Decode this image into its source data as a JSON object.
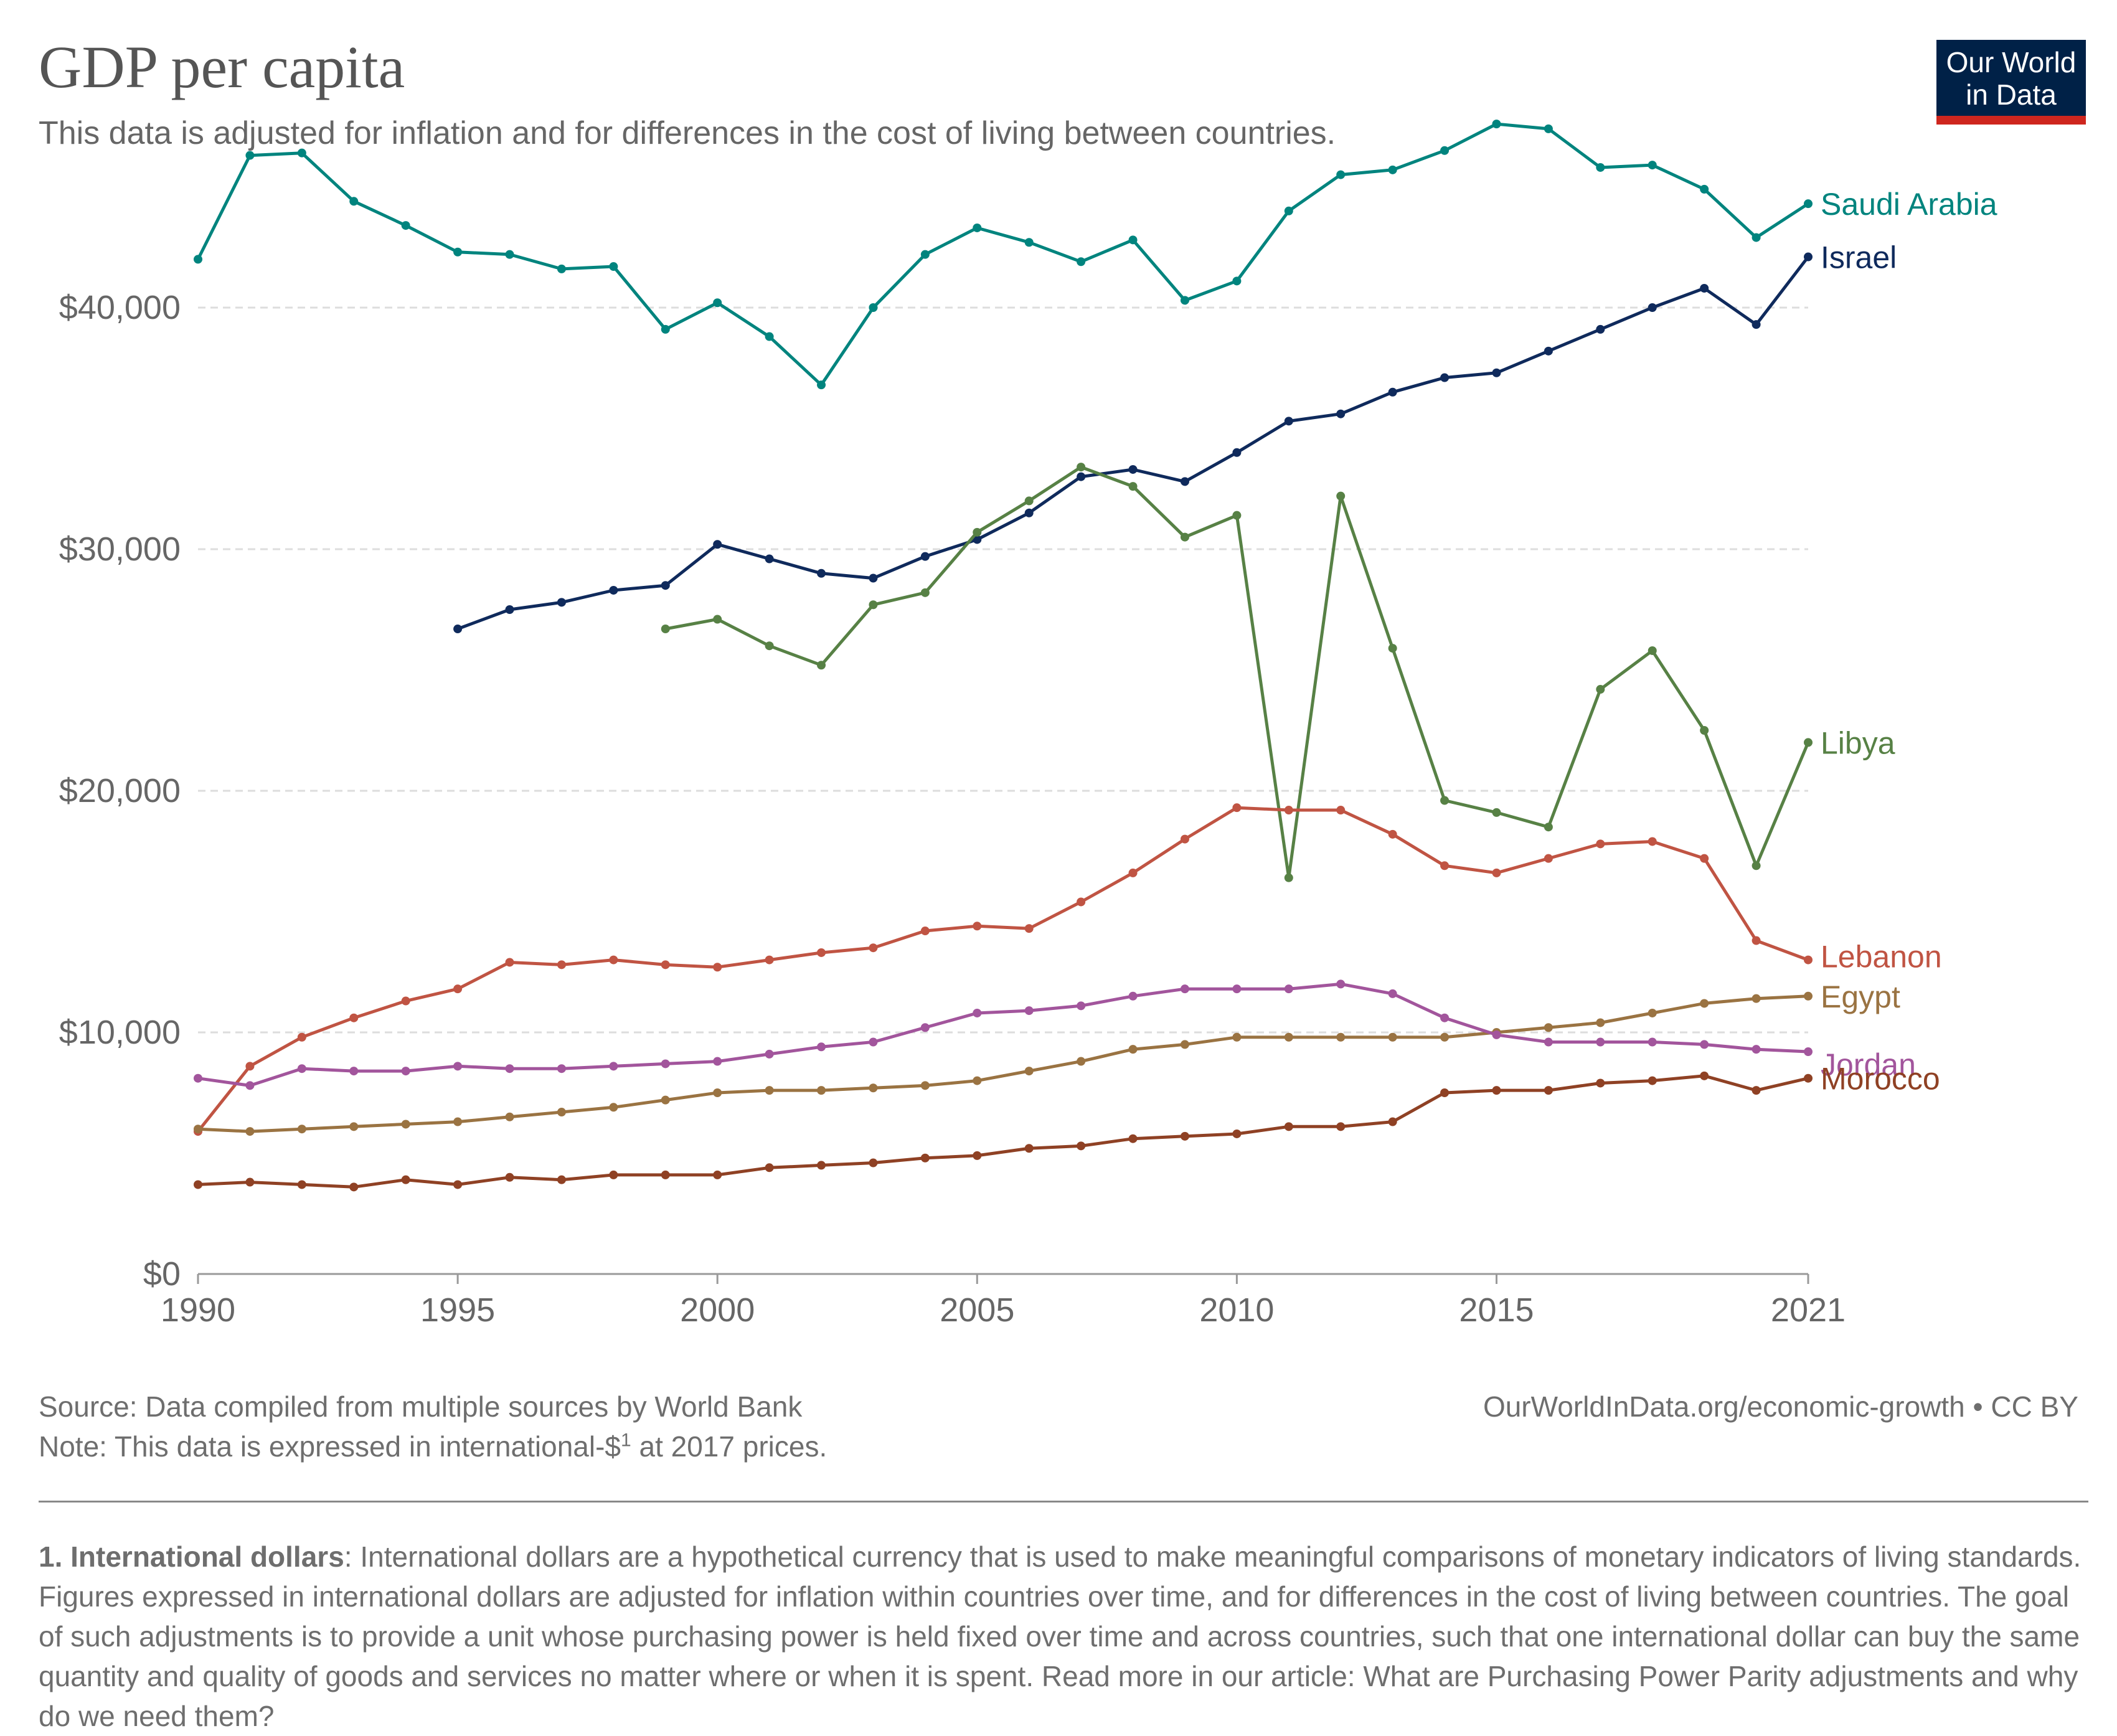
{
  "header": {
    "title": "GDP per capita",
    "subtitle": "This data is adjusted for inflation and for differences in the cost of living between countries.",
    "logo_line1": "Our World",
    "logo_line2": "in Data"
  },
  "footer": {
    "source": "Source: Data compiled from multiple sources by World Bank",
    "note_before": "Note: This data is expressed in international-$",
    "note_sup": "1",
    "note_after": " at 2017 prices.",
    "url": "OurWorldInData.org/economic-growth • CC BY",
    "footnote_bold": "1. International dollars",
    "footnote_text": ": International dollars are a hypothetical currency that is used to make meaningful comparisons of monetary indicators of living standards. Figures expressed in international dollars are adjusted for inflation within countries over time, and for differences in the cost of living between countries. The goal of such adjustments is to provide a unit whose purchasing power is held fixed over time and across countries, such that one international dollar can buy the same quantity and quality of goods and services no matter where or when it is spent. Read more in our article: What are Purchasing Power Parity adjustments and why do we need them?"
  },
  "colors": {
    "logo_bg": "#002147",
    "logo_bar": "#ce261e"
  },
  "chart_data": {
    "type": "line",
    "title": "GDP per capita",
    "xlim": [
      1990,
      2021
    ],
    "ylim": [
      0,
      45000
    ],
    "x_ticks": [
      {
        "value": 1990,
        "label": "1990"
      },
      {
        "value": 1995,
        "label": "1995"
      },
      {
        "value": 2000,
        "label": "2000"
      },
      {
        "value": 2005,
        "label": "2005"
      },
      {
        "value": 2010,
        "label": "2010"
      },
      {
        "value": 2015,
        "label": "2015"
      },
      {
        "value": 2021,
        "label": "2021"
      }
    ],
    "y_ticks": [
      {
        "value": 0,
        "label": "$0"
      },
      {
        "value": 10000,
        "label": "$10,000"
      },
      {
        "value": 20000,
        "label": "$20,000"
      },
      {
        "value": 30000,
        "label": "$30,000"
      },
      {
        "value": 40000,
        "label": "$40,000"
      }
    ],
    "grid": true,
    "legend": "line-end labels",
    "series": [
      {
        "name": "Saudi Arabia",
        "color": "#00847e",
        "x": [
          1990,
          1991,
          1992,
          1993,
          1994,
          1995,
          1996,
          1997,
          1998,
          1999,
          2000,
          2001,
          2002,
          2003,
          2004,
          2005,
          2006,
          2007,
          2008,
          2009,
          2010,
          2011,
          2012,
          2013,
          2014,
          2015,
          2016,
          2017,
          2018,
          2019,
          2020,
          2021
        ],
        "y": [
          42000,
          46300,
          46400,
          44400,
          43400,
          42300,
          42200,
          41600,
          41700,
          39100,
          40200,
          38800,
          36800,
          40000,
          42200,
          43300,
          42700,
          41900,
          42800,
          40300,
          41100,
          44000,
          45500,
          45700,
          46500,
          47600,
          47400,
          45800,
          45900,
          44900,
          42900,
          44300
        ]
      },
      {
        "name": "Israel",
        "color": "#0f2a5c",
        "x": [
          1995,
          1996,
          1997,
          1998,
          1999,
          2000,
          2001,
          2002,
          2003,
          2004,
          2005,
          2006,
          2007,
          2008,
          2009,
          2010,
          2011,
          2012,
          2013,
          2014,
          2015,
          2016,
          2017,
          2018,
          2019,
          2020,
          2021
        ],
        "y": [
          26700,
          27500,
          27800,
          28300,
          28500,
          30200,
          29600,
          29000,
          28800,
          29700,
          30400,
          31500,
          33000,
          33300,
          32800,
          34000,
          35300,
          35600,
          36500,
          37100,
          37300,
          38200,
          39100,
          40000,
          40800,
          39300,
          42100
        ]
      },
      {
        "name": "Libya",
        "color": "#578145",
        "x": [
          1999,
          2000,
          2001,
          2002,
          2003,
          2004,
          2005,
          2006,
          2007,
          2008,
          2009,
          2010,
          2011,
          2012,
          2013,
          2014,
          2015,
          2016,
          2017,
          2018,
          2019,
          2020,
          2021
        ],
        "y": [
          26700,
          27100,
          26000,
          25200,
          27700,
          28200,
          30700,
          32000,
          33400,
          32600,
          30500,
          31400,
          16400,
          32200,
          25900,
          19600,
          19100,
          18500,
          24200,
          25800,
          22500,
          16900,
          22000
        ]
      },
      {
        "name": "Lebanon",
        "color": "#c05443",
        "x": [
          1990,
          1991,
          1992,
          1993,
          1994,
          1995,
          1996,
          1997,
          1998,
          1999,
          2000,
          2001,
          2002,
          2003,
          2004,
          2005,
          2006,
          2007,
          2008,
          2009,
          2010,
          2011,
          2012,
          2013,
          2014,
          2015,
          2016,
          2017,
          2018,
          2019,
          2020,
          2021
        ],
        "y": [
          5900,
          8600,
          9800,
          10600,
          11300,
          11800,
          12900,
          12800,
          13000,
          12800,
          12700,
          13000,
          13300,
          13500,
          14200,
          14400,
          14300,
          15400,
          16600,
          18000,
          19300,
          19200,
          19200,
          18200,
          16900,
          16600,
          17200,
          17800,
          17900,
          17200,
          13800,
          13000
        ]
      },
      {
        "name": "Egypt",
        "color": "#9a7342",
        "x": [
          1990,
          1991,
          1992,
          1993,
          1994,
          1995,
          1996,
          1997,
          1998,
          1999,
          2000,
          2001,
          2002,
          2003,
          2004,
          2005,
          2006,
          2007,
          2008,
          2009,
          2010,
          2011,
          2012,
          2013,
          2014,
          2015,
          2016,
          2017,
          2018,
          2019,
          2020,
          2021
        ],
        "y": [
          6000,
          5900,
          6000,
          6100,
          6200,
          6300,
          6500,
          6700,
          6900,
          7200,
          7500,
          7600,
          7600,
          7700,
          7800,
          8000,
          8400,
          8800,
          9300,
          9500,
          9800,
          9800,
          9800,
          9800,
          9800,
          10000,
          10200,
          10400,
          10800,
          11200,
          11400,
          11500
        ]
      },
      {
        "name": "Jordan",
        "color": "#a2559c",
        "x": [
          1990,
          1991,
          1992,
          1993,
          1994,
          1995,
          1996,
          1997,
          1998,
          1999,
          2000,
          2001,
          2002,
          2003,
          2004,
          2005,
          2006,
          2007,
          2008,
          2009,
          2010,
          2011,
          2012,
          2013,
          2014,
          2015,
          2016,
          2017,
          2018,
          2019,
          2020,
          2021
        ],
        "y": [
          8100,
          7800,
          8500,
          8400,
          8400,
          8600,
          8500,
          8500,
          8600,
          8700,
          8800,
          9100,
          9400,
          9600,
          10200,
          10800,
          10900,
          11100,
          11500,
          11800,
          11800,
          11800,
          12000,
          11600,
          10600,
          9900,
          9600,
          9600,
          9600,
          9500,
          9300,
          9200
        ]
      },
      {
        "name": "Morocco",
        "color": "#8f4124",
        "x": [
          1990,
          1991,
          1992,
          1993,
          1994,
          1995,
          1996,
          1997,
          1998,
          1999,
          2000,
          2001,
          2002,
          2003,
          2004,
          2005,
          2006,
          2007,
          2008,
          2009,
          2010,
          2011,
          2012,
          2013,
          2014,
          2015,
          2016,
          2017,
          2018,
          2019,
          2020,
          2021
        ],
        "y": [
          3700,
          3800,
          3700,
          3600,
          3900,
          3700,
          4000,
          3900,
          4100,
          4100,
          4100,
          4400,
          4500,
          4600,
          4800,
          4900,
          5200,
          5300,
          5600,
          5700,
          5800,
          6100,
          6100,
          6300,
          7500,
          7600,
          7600,
          7900,
          8000,
          8200,
          7600,
          8100
        ]
      }
    ]
  }
}
